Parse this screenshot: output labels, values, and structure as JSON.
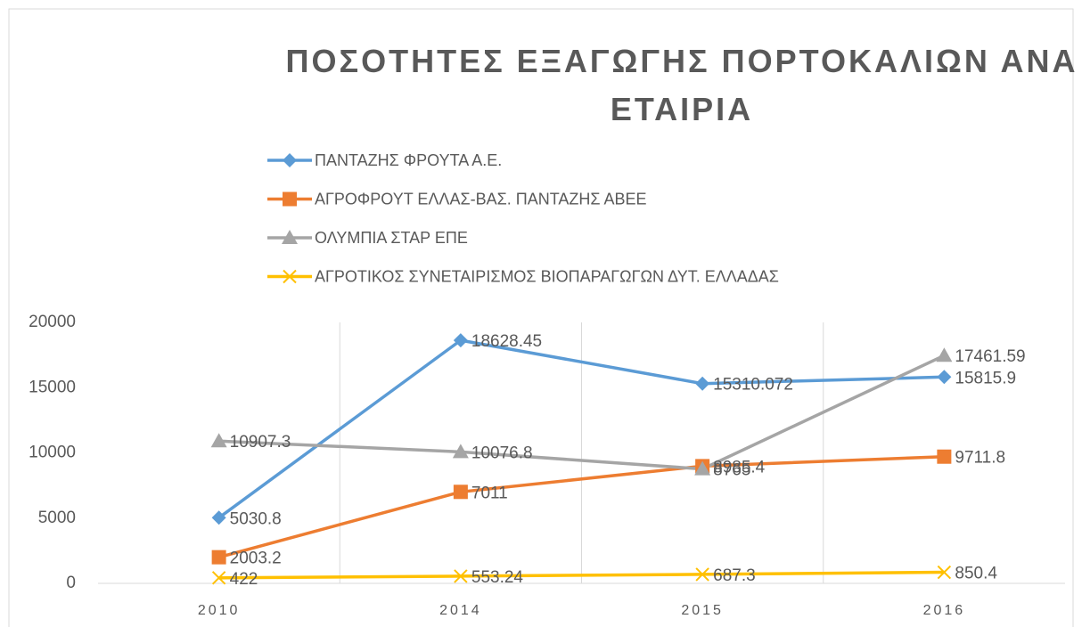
{
  "chart_data": {
    "type": "line",
    "title": "ΠΟΣΟΤΗΤΕΣ ΕΞΑΓΩΓΗΣ ΠΟΡΤΟΚΑΛΙΩΝ ΑΝΑ ΕΤΑΙΡΙΑ",
    "categories": [
      "2010",
      "2014",
      "2015",
      "2016"
    ],
    "series": [
      {
        "name": "ΠΑΝΤΑΖΗΣ ΦΡΟΥΤΑ Α.Ε.",
        "color": "#5b9bd5",
        "marker": "diamond",
        "values": [
          5030.8,
          18628.45,
          15310.072,
          15815.9
        ]
      },
      {
        "name": "ΑΓΡΟΦΡΟΥΤ ΕΛΛΑΣ-ΒΑΣ. ΠΑΝΤΑΖΗΣ ΑΒΕΕ",
        "color": "#ed7d31",
        "marker": "square",
        "values": [
          2003.2,
          7011,
          8985.4,
          9711.8
        ]
      },
      {
        "name": "ΟΛΥΜΠΙΑ ΣΤΑΡ ΕΠΕ",
        "color": "#a5a5a5",
        "marker": "triangle",
        "values": [
          10907.3,
          10076.8,
          8765,
          17461.59
        ]
      },
      {
        "name": "ΑΓΡΟΤΙΚΟΣ ΣΥΝΕΤΑΙΡΙΣΜΟΣ ΒΙΟΠΑΡΑΓΩΓΩΝ ΔΥΤ. ΕΛΛΑΔΑΣ",
        "color": "#ffc000",
        "marker": "x",
        "values": [
          422,
          553.24,
          687.3,
          850.4
        ]
      }
    ],
    "ylim": [
      0,
      20000
    ],
    "yticks": [
      0,
      5000,
      10000,
      15000,
      20000
    ],
    "xgrid": true,
    "data_labels": true,
    "legend": "top"
  }
}
